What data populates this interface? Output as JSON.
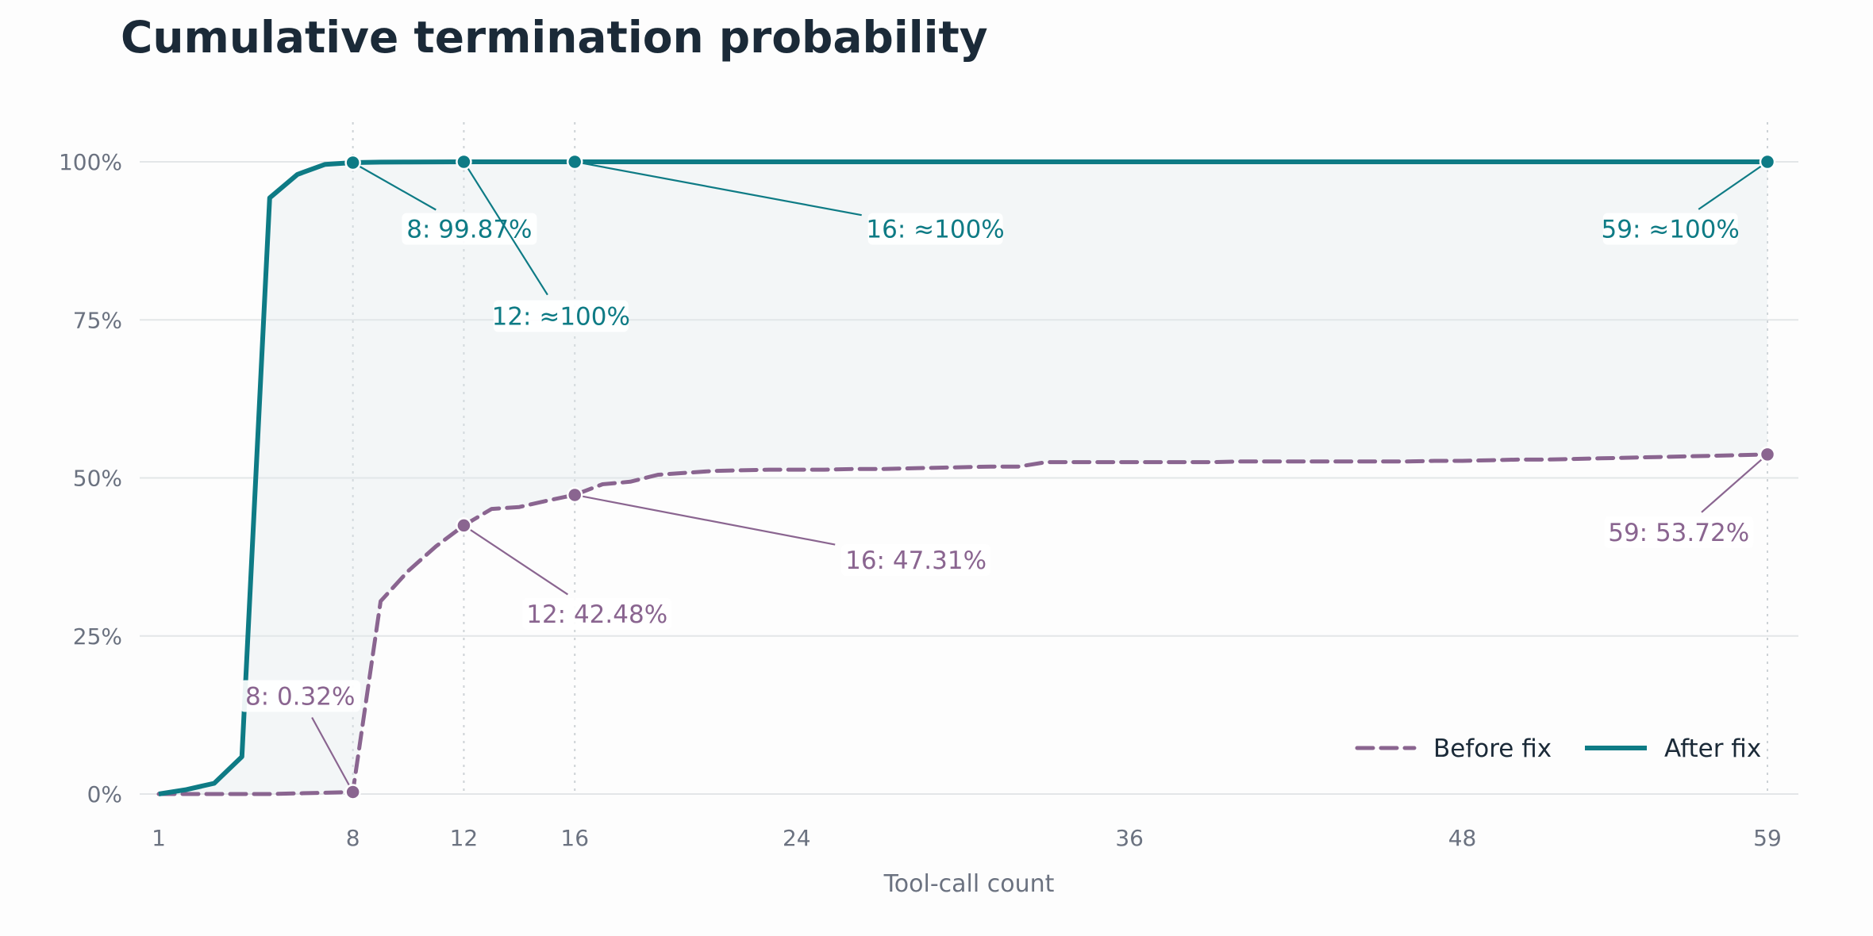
{
  "chart_data": {
    "type": "line",
    "title": "Cumulative termination probability",
    "xlabel": "Tool-call count",
    "ylabel": "",
    "xlim": [
      1,
      59
    ],
    "ylim": [
      0,
      100
    ],
    "x_ticks": [
      1,
      8,
      12,
      16,
      24,
      36,
      48,
      59
    ],
    "x_tick_labels": [
      "1",
      "8",
      "12",
      "16",
      "24",
      "36",
      "48",
      "59"
    ],
    "y_ticks": [
      0,
      25,
      50,
      75,
      100
    ],
    "y_tick_labels": [
      "0%",
      "25%",
      "50%",
      "75%",
      "100%"
    ],
    "grid": "horizontal",
    "reference_lines_x": [
      8,
      12,
      16,
      59
    ],
    "legend_position": "bottom-right",
    "series": [
      {
        "name": "Before fix",
        "style": "dashed",
        "color": "#8a6590",
        "x": [
          1,
          2,
          3,
          4,
          5,
          6,
          7,
          8,
          9,
          10,
          11,
          12,
          13,
          14,
          15,
          16,
          17,
          18,
          19,
          20,
          21,
          22,
          23,
          24,
          25,
          26,
          27,
          28,
          29,
          30,
          31,
          32,
          33,
          34,
          35,
          36,
          37,
          38,
          39,
          40,
          41,
          42,
          43,
          44,
          45,
          46,
          47,
          48,
          49,
          50,
          51,
          52,
          53,
          54,
          55,
          56,
          57,
          58,
          59
        ],
        "values": [
          0,
          0,
          0,
          0,
          0,
          0.1,
          0.2,
          0.32,
          30.5,
          35.3,
          39.2,
          42.48,
          45.1,
          45.4,
          46.4,
          47.31,
          49.0,
          49.4,
          50.5,
          50.8,
          51.1,
          51.2,
          51.3,
          51.3,
          51.3,
          51.4,
          51.4,
          51.5,
          51.6,
          51.7,
          51.8,
          51.8,
          52.5,
          52.5,
          52.5,
          52.5,
          52.5,
          52.5,
          52.5,
          52.6,
          52.6,
          52.6,
          52.6,
          52.6,
          52.6,
          52.6,
          52.7,
          52.7,
          52.8,
          52.9,
          52.9,
          53.0,
          53.1,
          53.2,
          53.3,
          53.4,
          53.5,
          53.6,
          53.72
        ]
      },
      {
        "name": "After fix",
        "style": "solid",
        "color": "#0e7b85",
        "x": [
          1,
          2,
          3,
          4,
          5,
          6,
          7,
          8,
          9,
          10,
          11,
          12,
          13,
          14,
          15,
          16,
          17,
          18,
          19,
          20,
          21,
          22,
          23,
          24,
          25,
          26,
          27,
          28,
          29,
          30,
          31,
          32,
          33,
          34,
          35,
          36,
          37,
          38,
          39,
          40,
          41,
          42,
          43,
          44,
          45,
          46,
          47,
          48,
          49,
          50,
          51,
          52,
          53,
          54,
          55,
          56,
          57,
          58,
          59
        ],
        "values": [
          0,
          0.7,
          1.7,
          5.9,
          94.3,
          98.0,
          99.6,
          99.87,
          99.95,
          99.97,
          99.99,
          100,
          100,
          100,
          100,
          100,
          100,
          100,
          100,
          100,
          100,
          100,
          100,
          100,
          100,
          100,
          100,
          100,
          100,
          100,
          100,
          100,
          100,
          100,
          100,
          100,
          100,
          100,
          100,
          100,
          100,
          100,
          100,
          100,
          100,
          100,
          100,
          100,
          100,
          100,
          100,
          100,
          100,
          100,
          100,
          100,
          100,
          100,
          100
        ]
      }
    ],
    "annotations": [
      {
        "series": "After fix",
        "x": 8,
        "y": 99.87,
        "text": "8: 99.87%",
        "label_x": 12.2,
        "label_y": 89.4
      },
      {
        "series": "After fix",
        "x": 12,
        "y": 100,
        "text": "12: ≈100%",
        "label_x": 15.5,
        "label_y": 75.6
      },
      {
        "series": "After fix",
        "x": 16,
        "y": 100,
        "text": "16: ≈100%",
        "label_x": 29.0,
        "label_y": 89.4
      },
      {
        "series": "After fix",
        "x": 59,
        "y": 100,
        "text": "59: ≈100%",
        "label_x": 55.5,
        "label_y": 89.4
      },
      {
        "series": "Before fix",
        "x": 8,
        "y": 0.32,
        "text": "8: 0.32%",
        "label_x": 6.1,
        "label_y": 15.5
      },
      {
        "series": "Before fix",
        "x": 12,
        "y": 42.48,
        "text": "12: 42.48%",
        "label_x": 16.8,
        "label_y": 28.5
      },
      {
        "series": "Before fix",
        "x": 16,
        "y": 47.31,
        "text": "16: 47.31%",
        "label_x": 28.3,
        "label_y": 37.0
      },
      {
        "series": "Before fix",
        "x": 59,
        "y": 53.72,
        "text": "59: 53.72%",
        "label_x": 55.8,
        "label_y": 41.4
      }
    ]
  }
}
